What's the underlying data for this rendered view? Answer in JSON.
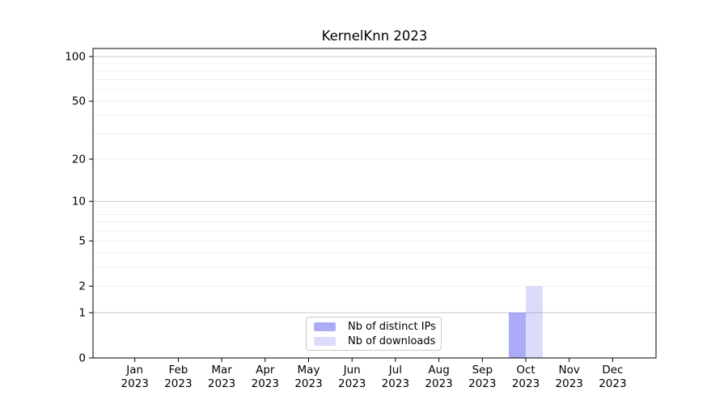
{
  "chart_data": {
    "type": "bar",
    "title": "KernelKnn 2023",
    "categories": [
      "Jan",
      "Feb",
      "Mar",
      "Apr",
      "May",
      "Jun",
      "Jul",
      "Aug",
      "Sep",
      "Oct",
      "Nov",
      "Dec"
    ],
    "category_year": "2023",
    "series": [
      {
        "name": "Nb of distinct IPs",
        "color": "rgba(0,0,230,0.33)",
        "color_hex_on_white": "#aaaaf7",
        "values": [
          0,
          0,
          0,
          0,
          0,
          0,
          0,
          0,
          0,
          1,
          0,
          0
        ]
      },
      {
        "name": "Nb of downloads",
        "color": "rgba(0,0,230,0.14)",
        "color_hex_on_white": "#dcdbf9",
        "values": [
          0,
          0,
          0,
          0,
          0,
          0,
          0,
          0,
          0,
          2,
          0,
          0
        ]
      }
    ],
    "yticks": [
      0,
      1,
      2,
      5,
      10,
      20,
      50,
      100
    ],
    "ylim": [
      0,
      113
    ],
    "scale": "log1p",
    "xlabel": "",
    "ylabel": "",
    "grid": "horizontal",
    "legend_position": "lower center",
    "axis_color": "#000000",
    "major_grid_color": "#c9c9c9",
    "minor_grid_color": "#f0f0f0",
    "tick_label_color": "#000000"
  }
}
